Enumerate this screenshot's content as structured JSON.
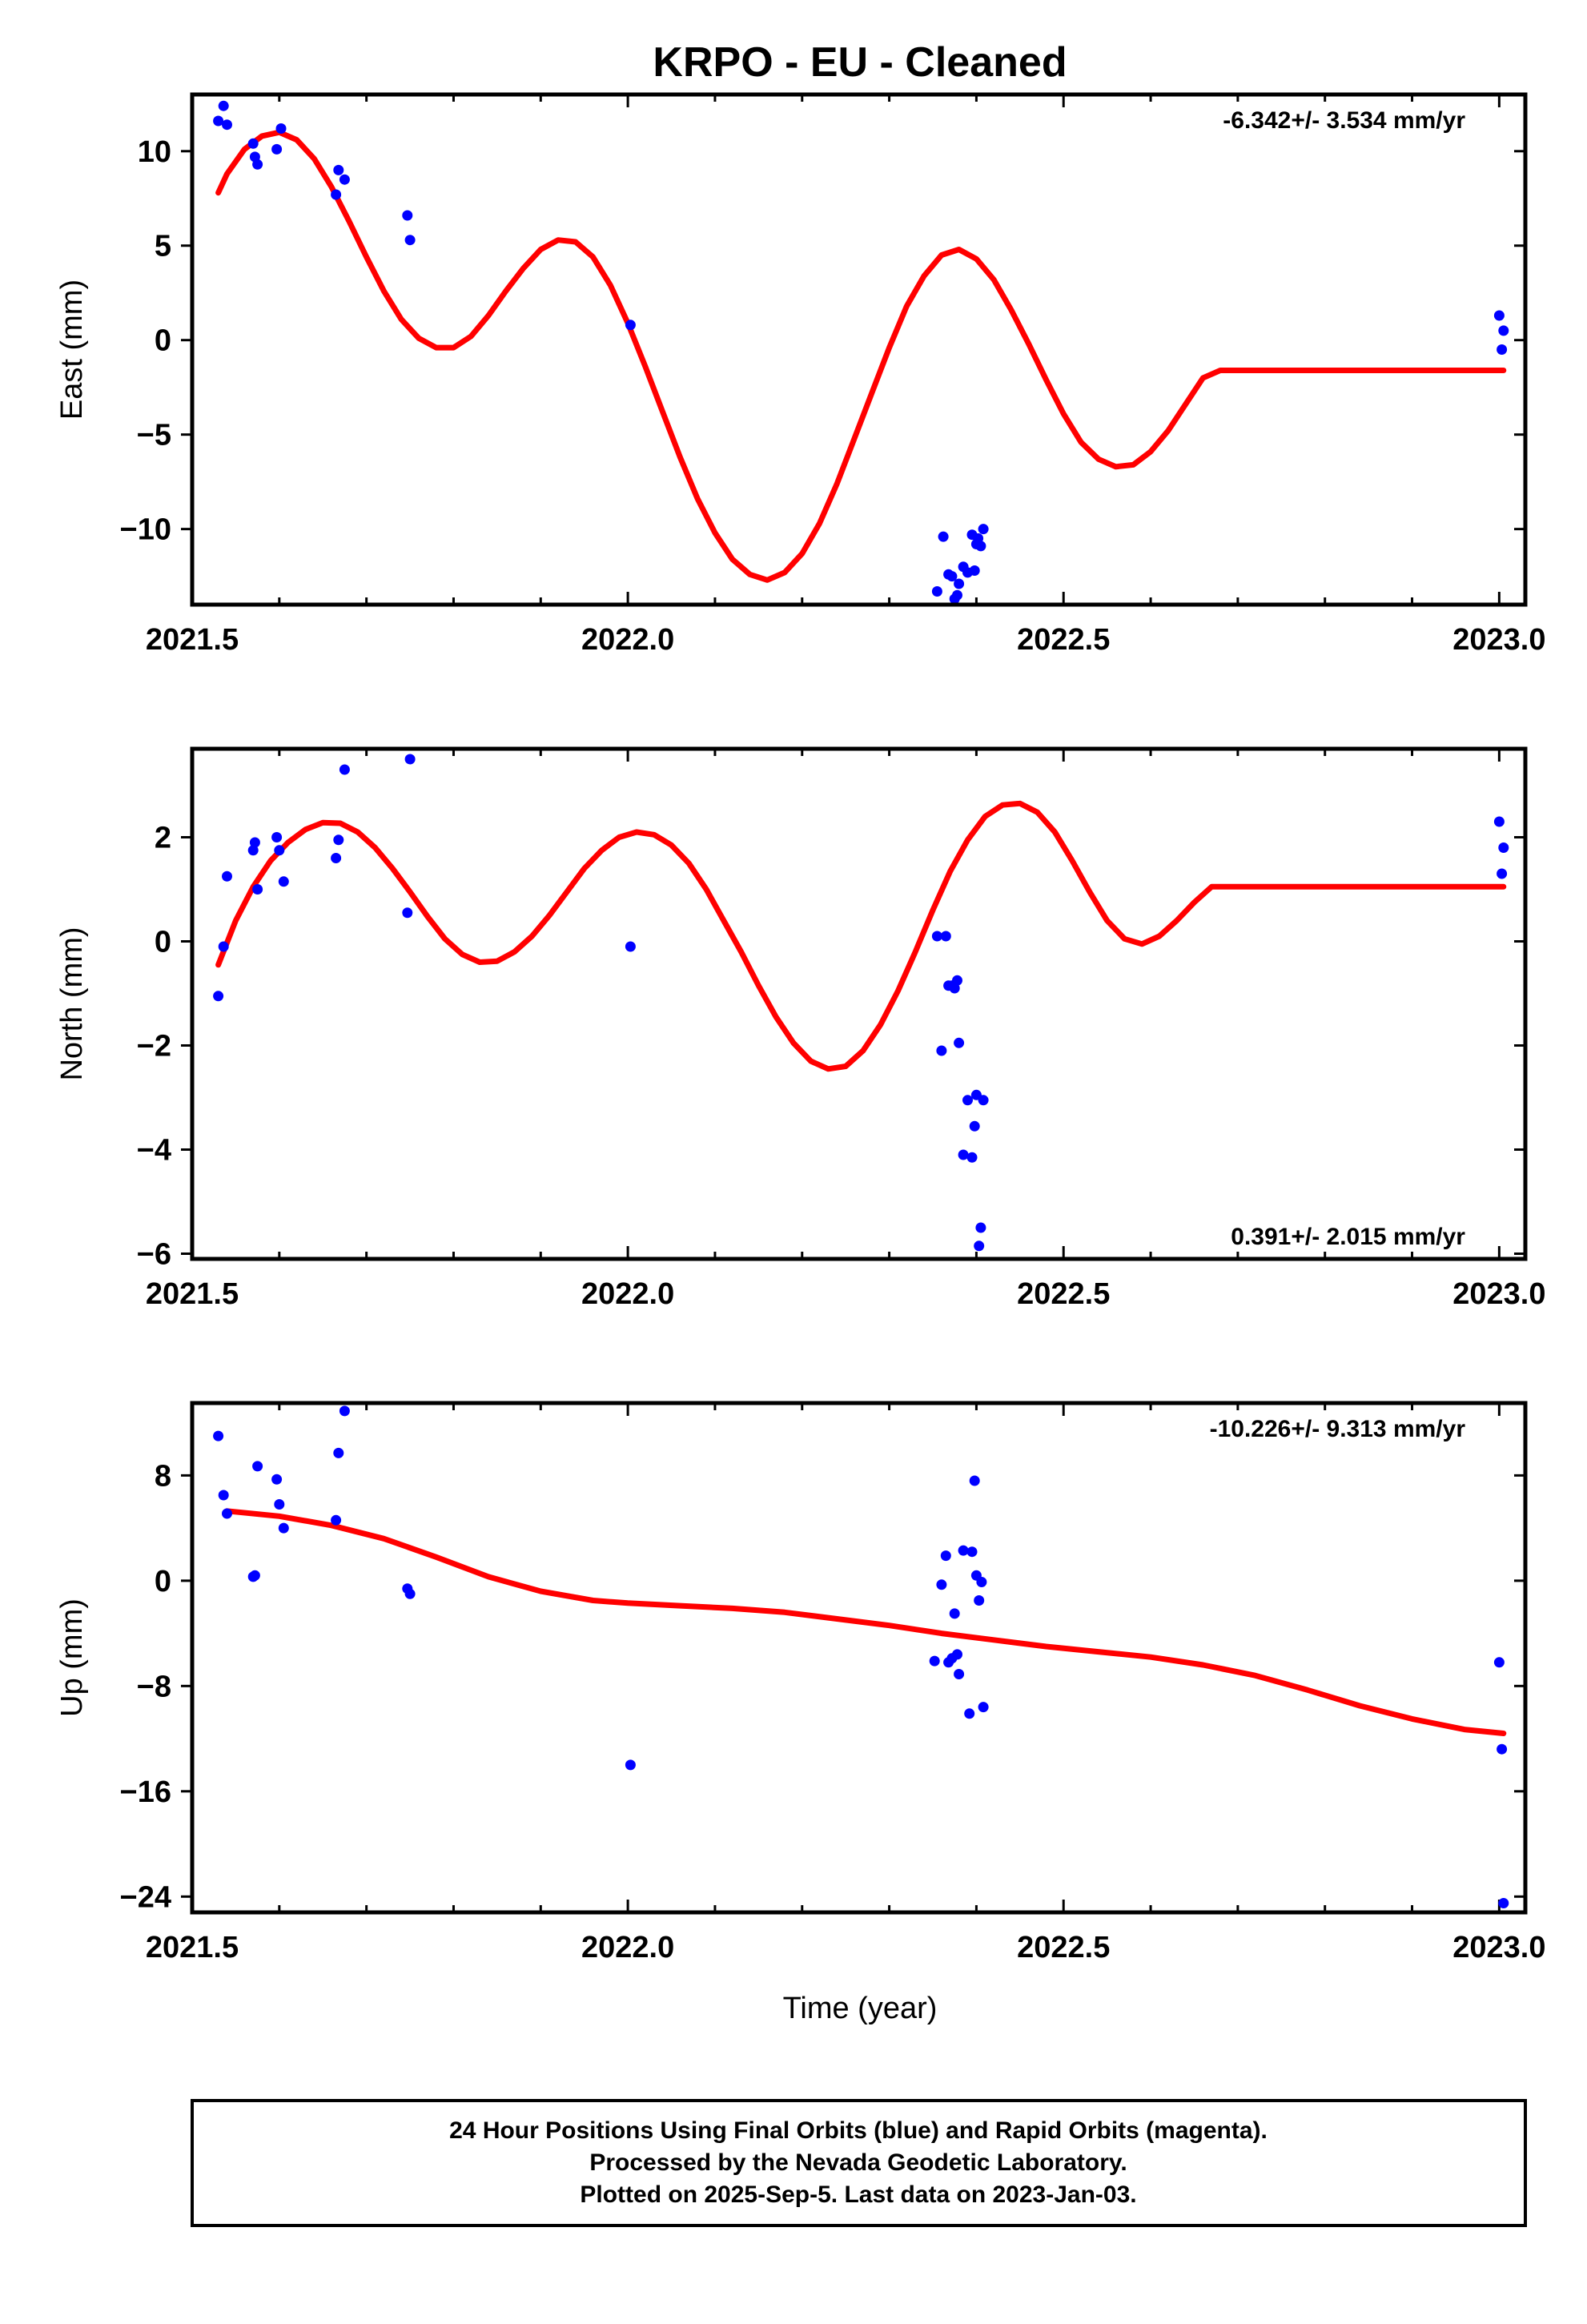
{
  "figure": {
    "title": "KRPO  - EU - Cleaned",
    "xlabel": "Time (year)",
    "footer": [
      "24 Hour Positions Using Final Orbits (blue) and Rapid Orbits (magenta).",
      "Processed by the Nevada Geodetic Laboratory.",
      "Plotted on 2025-Sep-5. Last data on 2023-Jan-03."
    ],
    "colors": {
      "data": "#0000ff",
      "model": "#ff0000",
      "frame": "#000000"
    }
  },
  "chart_data": [
    {
      "type": "scatter",
      "ylabel": "East (mm)",
      "rate": "-6.342+/- 3.534 mm/yr",
      "rate_position": "top-right",
      "xlim": [
        2021.5,
        2023.03
      ],
      "ylim": [
        -14,
        13
      ],
      "xticks": [
        2021.5,
        2022.0,
        2022.5,
        2023.0
      ],
      "xtick_labels": [
        "2021.5",
        "2022.0",
        "2022.5",
        "2023.0"
      ],
      "yticks": [
        10,
        5,
        0,
        -5,
        -10
      ],
      "ytick_labels": [
        "10",
        "5",
        "0",
        "−5",
        "−10"
      ],
      "points": [
        [
          2021.53,
          11.6
        ],
        [
          2021.536,
          12.4
        ],
        [
          2021.54,
          11.4
        ],
        [
          2021.57,
          10.4
        ],
        [
          2021.572,
          9.7
        ],
        [
          2021.575,
          9.3
        ],
        [
          2021.597,
          10.1
        ],
        [
          2021.602,
          11.2
        ],
        [
          2021.665,
          7.7
        ],
        [
          2021.668,
          9.0
        ],
        [
          2021.675,
          8.5
        ],
        [
          2021.747,
          6.6
        ],
        [
          2021.75,
          5.3
        ],
        [
          2022.003,
          0.8
        ],
        [
          2022.355,
          -13.3
        ],
        [
          2022.362,
          -10.4
        ],
        [
          2022.368,
          -12.4
        ],
        [
          2022.372,
          -12.5
        ],
        [
          2022.375,
          -13.7
        ],
        [
          2022.378,
          -13.5
        ],
        [
          2022.38,
          -12.9
        ],
        [
          2022.385,
          -12.0
        ],
        [
          2022.39,
          -12.3
        ],
        [
          2022.395,
          -10.3
        ],
        [
          2022.398,
          -12.2
        ],
        [
          2022.4,
          -10.8
        ],
        [
          2022.402,
          -10.5
        ],
        [
          2022.405,
          -10.9
        ],
        [
          2022.408,
          -10.0
        ],
        [
          2023.0,
          1.3
        ],
        [
          2023.003,
          -0.5
        ],
        [
          2023.005,
          0.5
        ]
      ],
      "model": {
        "x": [
          2021.53,
          2021.54,
          2021.56,
          2021.58,
          2021.6,
          2021.62,
          2021.64,
          2021.66,
          2021.68,
          2021.7,
          2021.72,
          2021.74,
          2021.76,
          2021.78,
          2021.8,
          2021.82,
          2021.84,
          2021.86,
          2021.88,
          2021.9,
          2021.92,
          2021.94,
          2021.96,
          2021.98,
          2022.0,
          2022.02,
          2022.04,
          2022.06,
          2022.08,
          2022.1,
          2022.12,
          2022.14,
          2022.16,
          2022.18,
          2022.2,
          2022.22,
          2022.24,
          2022.26,
          2022.28,
          2022.3,
          2022.32,
          2022.34,
          2022.36,
          2022.38,
          2022.4,
          2022.42,
          2022.44,
          2022.46,
          2022.48,
          2022.5,
          2022.52,
          2022.54,
          2022.56,
          2022.58,
          2022.6,
          2022.62,
          2022.64,
          2022.66,
          2022.68,
          2022.7,
          2022.72,
          2022.74,
          2022.76,
          2022.78,
          2022.8,
          2022.82,
          2022.84,
          2022.86,
          2022.88,
          2022.9,
          2022.92,
          2022.94,
          2022.96,
          2022.98,
          2023.0,
          2023.005
        ],
        "y": [
          7.8,
          8.8,
          10.1,
          10.8,
          11.0,
          10.6,
          9.6,
          8.1,
          6.3,
          4.4,
          2.6,
          1.1,
          0.1,
          -0.4,
          -0.4,
          0.2,
          1.3,
          2.6,
          3.8,
          4.8,
          5.3,
          5.2,
          4.4,
          2.9,
          0.9,
          -1.4,
          -3.8,
          -6.2,
          -8.4,
          -10.2,
          -11.6,
          -12.4,
          -12.7,
          -12.3,
          -11.3,
          -9.7,
          -7.6,
          -5.2,
          -2.8,
          -0.4,
          1.8,
          3.4,
          4.5,
          4.8,
          4.3,
          3.2,
          1.6,
          -0.2,
          -2.1,
          -3.9,
          -5.4,
          -6.3,
          -6.7,
          -6.6,
          -5.9,
          -4.8,
          -3.4,
          -2.0,
          -1.6,
          -1.6,
          -1.6,
          -1.6,
          -1.6,
          -1.6,
          -1.6,
          -1.6,
          -1.6,
          -1.6,
          -1.6,
          -1.6,
          -1.6,
          -1.6,
          -1.6,
          -1.6,
          -1.6,
          -1.6
        ]
      }
    },
    {
      "type": "scatter",
      "ylabel": "North (mm)",
      "rate": "0.391+/- 2.015 mm/yr",
      "rate_position": "bottom-right",
      "xlim": [
        2021.5,
        2023.03
      ],
      "ylim": [
        -6.1,
        3.7
      ],
      "xticks": [
        2021.5,
        2022.0,
        2022.5,
        2023.0
      ],
      "xtick_labels": [
        "2021.5",
        "2022.0",
        "2022.5",
        "2023.0"
      ],
      "yticks": [
        2,
        0,
        -2,
        -4,
        -6
      ],
      "ytick_labels": [
        "2",
        "0",
        "−2",
        "−4",
        "−6"
      ],
      "points": [
        [
          2021.53,
          -1.05
        ],
        [
          2021.536,
          -0.1
        ],
        [
          2021.54,
          1.25
        ],
        [
          2021.57,
          1.75
        ],
        [
          2021.572,
          1.9
        ],
        [
          2021.575,
          1.0
        ],
        [
          2021.597,
          2.0
        ],
        [
          2021.6,
          1.75
        ],
        [
          2021.605,
          1.15
        ],
        [
          2021.665,
          1.6
        ],
        [
          2021.668,
          1.95
        ],
        [
          2021.675,
          3.3
        ],
        [
          2021.747,
          0.55
        ],
        [
          2021.75,
          3.5
        ],
        [
          2022.003,
          -0.1
        ],
        [
          2022.355,
          0.1
        ],
        [
          2022.36,
          -2.1
        ],
        [
          2022.365,
          0.1
        ],
        [
          2022.368,
          -0.85
        ],
        [
          2022.372,
          -0.85
        ],
        [
          2022.375,
          -0.9
        ],
        [
          2022.378,
          -0.75
        ],
        [
          2022.38,
          -1.95
        ],
        [
          2022.385,
          -4.1
        ],
        [
          2022.39,
          -3.05
        ],
        [
          2022.395,
          -4.15
        ],
        [
          2022.398,
          -3.55
        ],
        [
          2022.4,
          -2.95
        ],
        [
          2022.403,
          -5.85
        ],
        [
          2022.405,
          -5.5
        ],
        [
          2022.408,
          -3.05
        ],
        [
          2023.0,
          2.3
        ],
        [
          2023.003,
          1.3
        ],
        [
          2023.005,
          1.8
        ]
      ],
      "model": {
        "x": [
          2021.53,
          2021.55,
          2021.57,
          2021.59,
          2021.61,
          2021.63,
          2021.65,
          2021.67,
          2021.69,
          2021.71,
          2021.73,
          2021.75,
          2021.77,
          2021.79,
          2021.81,
          2021.83,
          2021.85,
          2021.87,
          2021.89,
          2021.91,
          2021.93,
          2021.95,
          2021.97,
          2021.99,
          2022.01,
          2022.03,
          2022.05,
          2022.07,
          2022.09,
          2022.11,
          2022.13,
          2022.15,
          2022.17,
          2022.19,
          2022.21,
          2022.23,
          2022.25,
          2022.27,
          2022.29,
          2022.31,
          2022.33,
          2022.35,
          2022.37,
          2022.39,
          2022.41,
          2022.43,
          2022.45,
          2022.47,
          2022.49,
          2022.51,
          2022.53,
          2022.55,
          2022.57,
          2022.59,
          2022.61,
          2022.63,
          2022.65,
          2022.67,
          2022.69,
          2022.71,
          2022.73,
          2022.75,
          2022.77,
          2022.79,
          2022.81,
          2022.83,
          2022.85,
          2022.87,
          2022.89,
          2022.91,
          2022.93,
          2022.95,
          2022.97,
          2022.99,
          2023.005
        ],
        "y": [
          -0.45,
          0.4,
          1.05,
          1.55,
          1.9,
          2.15,
          2.28,
          2.27,
          2.1,
          1.8,
          1.4,
          0.95,
          0.48,
          0.05,
          -0.25,
          -0.4,
          -0.38,
          -0.2,
          0.1,
          0.5,
          0.95,
          1.4,
          1.75,
          2.0,
          2.1,
          2.05,
          1.85,
          1.5,
          1.0,
          0.4,
          -0.2,
          -0.85,
          -1.45,
          -1.95,
          -2.3,
          -2.45,
          -2.4,
          -2.1,
          -1.6,
          -0.95,
          -0.2,
          0.6,
          1.35,
          1.95,
          2.4,
          2.62,
          2.65,
          2.48,
          2.1,
          1.55,
          0.95,
          0.4,
          0.05,
          -0.05,
          0.1,
          0.4,
          0.75,
          1.05,
          1.05,
          1.05,
          1.05,
          1.05,
          1.05,
          1.05,
          1.05,
          1.05,
          1.05,
          1.05,
          1.05,
          1.05,
          1.05,
          1.05,
          1.05,
          1.05,
          1.05
        ]
      }
    },
    {
      "type": "scatter",
      "ylabel": "Up (mm)",
      "rate": "-10.226+/- 9.313 mm/yr",
      "rate_position": "top-right",
      "xlim": [
        2021.5,
        2023.03
      ],
      "ylim": [
        -25.2,
        13.5
      ],
      "xticks": [
        2021.5,
        2022.0,
        2022.5,
        2023.0
      ],
      "xtick_labels": [
        "2021.5",
        "2022.0",
        "2022.5",
        "2023.0"
      ],
      "yticks": [
        8,
        0,
        -8,
        -16,
        -24
      ],
      "ytick_labels": [
        "8",
        "0",
        "−8",
        "−16",
        "−24"
      ],
      "points": [
        [
          2021.53,
          11.0
        ],
        [
          2021.536,
          6.5
        ],
        [
          2021.54,
          5.1
        ],
        [
          2021.57,
          0.3
        ],
        [
          2021.572,
          0.4
        ],
        [
          2021.575,
          8.7
        ],
        [
          2021.597,
          7.7
        ],
        [
          2021.6,
          5.8
        ],
        [
          2021.605,
          4.0
        ],
        [
          2021.665,
          4.6
        ],
        [
          2021.668,
          9.7
        ],
        [
          2021.675,
          12.9
        ],
        [
          2021.747,
          -0.6
        ],
        [
          2021.75,
          -1.0
        ],
        [
          2022.003,
          -14.0
        ],
        [
          2022.352,
          -6.1
        ],
        [
          2022.36,
          -0.3
        ],
        [
          2022.365,
          1.9
        ],
        [
          2022.368,
          -6.2
        ],
        [
          2022.372,
          -5.9
        ],
        [
          2022.375,
          -2.5
        ],
        [
          2022.378,
          -5.6
        ],
        [
          2022.38,
          -7.1
        ],
        [
          2022.385,
          2.3
        ],
        [
          2022.392,
          -10.1
        ],
        [
          2022.395,
          2.2
        ],
        [
          2022.398,
          7.6
        ],
        [
          2022.4,
          0.4
        ],
        [
          2022.403,
          -1.5
        ],
        [
          2022.406,
          -0.1
        ],
        [
          2022.408,
          -9.6
        ],
        [
          2023.0,
          -6.2
        ],
        [
          2023.003,
          -12.8
        ],
        [
          2023.005,
          -24.5
        ]
      ],
      "model": {
        "x": [
          2021.54,
          2021.6,
          2021.66,
          2021.72,
          2021.78,
          2021.84,
          2021.9,
          2021.96,
          2022.0,
          2022.06,
          2022.12,
          2022.18,
          2022.24,
          2022.3,
          2022.36,
          2022.42,
          2022.48,
          2022.54,
          2022.6,
          2022.66,
          2022.72,
          2022.78,
          2022.84,
          2022.9,
          2022.96,
          2023.005
        ],
        "y": [
          5.3,
          4.9,
          4.2,
          3.2,
          1.8,
          0.3,
          -0.8,
          -1.5,
          -1.7,
          -1.9,
          -2.1,
          -2.4,
          -2.9,
          -3.4,
          -4.0,
          -4.5,
          -5.0,
          -5.4,
          -5.8,
          -6.4,
          -7.2,
          -8.3,
          -9.5,
          -10.5,
          -11.3,
          -11.6
        ]
      }
    }
  ]
}
